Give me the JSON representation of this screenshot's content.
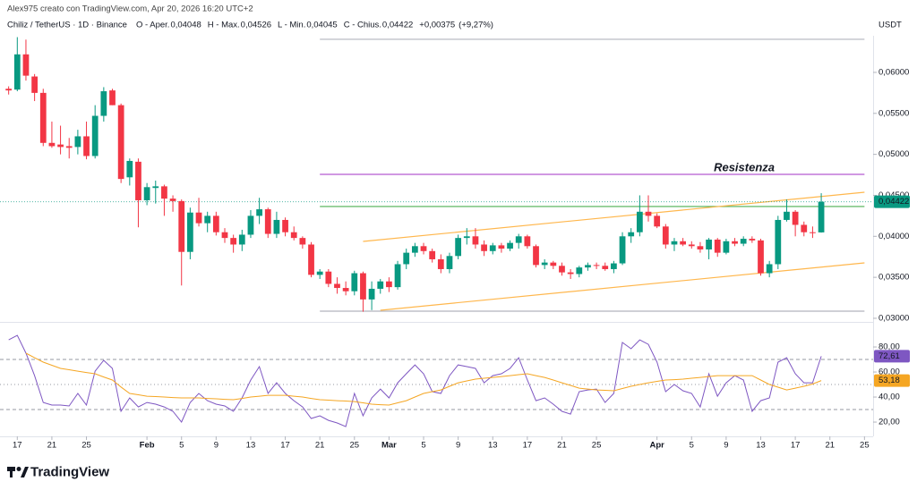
{
  "source": "Alex975 creato con TradingView.com, Apr 20, 2026 16:20 UTC+2",
  "brand": "TradingView",
  "chart_data": [
    {
      "type": "candlestick",
      "title": "Chiliz / TetherUS · 1D · Binance",
      "unit": "USDT",
      "legend_items": [
        {
          "label": "O - Aper.",
          "value": {
            "value": 0.04048,
            "label": "0,04048"
          }
        },
        {
          "label": "H - Max.",
          "value": {
            "value": 0.04526,
            "label": "0,04526"
          }
        },
        {
          "label": "L - Min.",
          "value": {
            "value": 0.04045,
            "label": "0,04045"
          }
        },
        {
          "label": "C - Chius.",
          "value": {
            "value": 0.04422,
            "label": "0,04422"
          }
        }
      ],
      "change": {
        "value": 0.00375,
        "label": "+0,00375"
      },
      "change_percent": {
        "value": 9.27,
        "label": "(+9,27%)"
      },
      "last_price": {
        "value": 0.04422,
        "label": "0,04422"
      },
      "up_color": "#089981",
      "down_color": "#f23645",
      "x": [
        "2026-01-16",
        "2026-01-17",
        "2026-01-18",
        "2026-01-19",
        "2026-01-20",
        "2026-01-21",
        "2026-01-22",
        "2026-01-23",
        "2026-01-24",
        "2026-01-25",
        "2026-01-26",
        "2026-01-27",
        "2026-01-28",
        "2026-01-29",
        "2026-01-30",
        "2026-01-31",
        "2026-02-01",
        "2026-02-02",
        "2026-02-03",
        "2026-02-04",
        "2026-02-05",
        "2026-02-06",
        "2026-02-07",
        "2026-02-08",
        "2026-02-09",
        "2026-02-10",
        "2026-02-11",
        "2026-02-12",
        "2026-02-13",
        "2026-02-14",
        "2026-02-15",
        "2026-02-16",
        "2026-02-17",
        "2026-02-18",
        "2026-02-19",
        "2026-02-20",
        "2026-02-21",
        "2026-02-22",
        "2026-02-23",
        "2026-02-24",
        "2026-02-25",
        "2026-02-26",
        "2026-02-27",
        "2026-02-28",
        "2026-03-01",
        "2026-03-02",
        "2026-03-03",
        "2026-03-04",
        "2026-03-05",
        "2026-03-06",
        "2026-03-07",
        "2026-03-08",
        "2026-03-09",
        "2026-03-10",
        "2026-03-11",
        "2026-03-12",
        "2026-03-13",
        "2026-03-14",
        "2026-03-15",
        "2026-03-16",
        "2026-03-17",
        "2026-03-18",
        "2026-03-19",
        "2026-03-20",
        "2026-03-21",
        "2026-03-22",
        "2026-03-23",
        "2026-03-24",
        "2026-03-25",
        "2026-03-26",
        "2026-03-27",
        "2026-03-28",
        "2026-03-29",
        "2026-03-30",
        "2026-03-31",
        "2026-04-01",
        "2026-04-02",
        "2026-04-03",
        "2026-04-04",
        "2026-04-05",
        "2026-04-06",
        "2026-04-07",
        "2026-04-08",
        "2026-04-09",
        "2026-04-10",
        "2026-04-11",
        "2026-04-12",
        "2026-04-13",
        "2026-04-14",
        "2026-04-15",
        "2026-04-16",
        "2026-04-17",
        "2026-04-18",
        "2026-04-19",
        "2026-04-20"
      ],
      "open": [
        0.058,
        0.0579,
        0.0622,
        0.0595,
        0.0575,
        0.0514,
        0.0512,
        0.051,
        0.0509,
        0.0522,
        0.0498,
        0.0547,
        0.0578,
        0.056,
        0.0472,
        0.0491,
        0.0444,
        0.0459,
        0.0461,
        0.0446,
        0.0443,
        0.0381,
        0.0429,
        0.0416,
        0.0425,
        0.0405,
        0.0398,
        0.039,
        0.0402,
        0.0425,
        0.0433,
        0.0403,
        0.042,
        0.0405,
        0.0398,
        0.039,
        0.0353,
        0.0357,
        0.0342,
        0.0337,
        0.0333,
        0.0355,
        0.0323,
        0.0336,
        0.0345,
        0.0338,
        0.0366,
        0.038,
        0.0388,
        0.0382,
        0.0372,
        0.036,
        0.0376,
        0.0398,
        0.04,
        0.039,
        0.0382,
        0.0389,
        0.0385,
        0.0392,
        0.04,
        0.0388,
        0.0365,
        0.0368,
        0.0364,
        0.0356,
        0.0354,
        0.0362,
        0.0365,
        0.0364,
        0.036,
        0.0367,
        0.04,
        0.0405,
        0.043,
        0.0425,
        0.0412,
        0.039,
        0.0394,
        0.039,
        0.0388,
        0.0384,
        0.0396,
        0.038,
        0.0394,
        0.0391,
        0.0397,
        0.0395,
        0.0355,
        0.0366,
        0.042,
        0.043,
        0.0414,
        0.0405,
        0.04048
      ],
      "high": [
        0.0583,
        0.0643,
        0.064,
        0.0598,
        0.058,
        0.054,
        0.0535,
        0.052,
        0.053,
        0.054,
        0.056,
        0.0582,
        0.058,
        0.0562,
        0.0495,
        0.0495,
        0.0465,
        0.0468,
        0.0463,
        0.045,
        0.0445,
        0.0435,
        0.0447,
        0.043,
        0.043,
        0.041,
        0.0402,
        0.0408,
        0.0432,
        0.0447,
        0.0435,
        0.043,
        0.0423,
        0.0412,
        0.04,
        0.0393,
        0.036,
        0.036,
        0.035,
        0.0345,
        0.0358,
        0.0357,
        0.0345,
        0.0348,
        0.035,
        0.037,
        0.0385,
        0.0392,
        0.0392,
        0.0385,
        0.0378,
        0.038,
        0.0402,
        0.041,
        0.041,
        0.0395,
        0.0392,
        0.0392,
        0.0395,
        0.0403,
        0.0402,
        0.039,
        0.0372,
        0.037,
        0.0368,
        0.036,
        0.0364,
        0.0368,
        0.0368,
        0.0368,
        0.037,
        0.0405,
        0.041,
        0.045,
        0.045,
        0.0428,
        0.0415,
        0.0398,
        0.0398,
        0.0394,
        0.0393,
        0.0398,
        0.0398,
        0.0397,
        0.0398,
        0.04,
        0.04,
        0.0397,
        0.037,
        0.0425,
        0.0445,
        0.0432,
        0.0418,
        0.0412,
        0.04526
      ],
      "low": [
        0.0573,
        0.0577,
        0.059,
        0.0565,
        0.051,
        0.0508,
        0.05,
        0.0495,
        0.05,
        0.0494,
        0.0495,
        0.054,
        0.056,
        0.0465,
        0.0462,
        0.0411,
        0.0438,
        0.044,
        0.0425,
        0.043,
        0.034,
        0.0372,
        0.0412,
        0.0405,
        0.0401,
        0.0392,
        0.038,
        0.0382,
        0.0398,
        0.0415,
        0.0398,
        0.0398,
        0.04,
        0.0395,
        0.0385,
        0.035,
        0.0348,
        0.0338,
        0.033,
        0.0328,
        0.0328,
        0.0308,
        0.031,
        0.033,
        0.0332,
        0.0335,
        0.036,
        0.0375,
        0.0378,
        0.0368,
        0.0355,
        0.0355,
        0.0372,
        0.039,
        0.0385,
        0.0376,
        0.0378,
        0.038,
        0.0382,
        0.0385,
        0.0385,
        0.0362,
        0.036,
        0.036,
        0.0352,
        0.0348,
        0.035,
        0.0358,
        0.036,
        0.0358,
        0.0355,
        0.0365,
        0.0392,
        0.04,
        0.0418,
        0.041,
        0.0385,
        0.0382,
        0.0388,
        0.0385,
        0.038,
        0.0372,
        0.0375,
        0.0378,
        0.0388,
        0.0388,
        0.0392,
        0.0352,
        0.035,
        0.036,
        0.0418,
        0.04,
        0.04,
        0.0398,
        0.04045
      ],
      "close": [
        0.0578,
        0.0622,
        0.0596,
        0.0575,
        0.0514,
        0.051,
        0.0509,
        0.0508,
        0.0522,
        0.0498,
        0.0547,
        0.0577,
        0.056,
        0.047,
        0.0492,
        0.0444,
        0.046,
        0.0461,
        0.0446,
        0.0443,
        0.0381,
        0.0429,
        0.0416,
        0.0425,
        0.0405,
        0.0398,
        0.039,
        0.0402,
        0.0425,
        0.0433,
        0.0403,
        0.042,
        0.0405,
        0.0398,
        0.039,
        0.0353,
        0.0357,
        0.0342,
        0.0337,
        0.0333,
        0.0355,
        0.0323,
        0.0336,
        0.0345,
        0.0338,
        0.0366,
        0.038,
        0.0388,
        0.0382,
        0.0372,
        0.036,
        0.0376,
        0.0398,
        0.04,
        0.039,
        0.0382,
        0.0389,
        0.0385,
        0.0392,
        0.04,
        0.0388,
        0.0365,
        0.0368,
        0.0364,
        0.0356,
        0.0354,
        0.0362,
        0.0365,
        0.0364,
        0.036,
        0.0367,
        0.04,
        0.0405,
        0.043,
        0.0425,
        0.0412,
        0.039,
        0.0394,
        0.039,
        0.0388,
        0.0384,
        0.0396,
        0.038,
        0.0394,
        0.0391,
        0.0397,
        0.0395,
        0.0355,
        0.0366,
        0.042,
        0.043,
        0.0414,
        0.0405,
        0.0404,
        0.04422
      ],
      "drawings": [
        {
          "label": "Resistenza",
          "color": "#b35ad1",
          "x": [
            "2026-02-21",
            "2026-04-25"
          ],
          "y": [
            0.04756,
            0.04756
          ]
        },
        {
          "color": "#4caf50",
          "x": [
            "2026-02-21",
            "2026-04-25"
          ],
          "y": [
            0.04364,
            0.04364
          ]
        },
        {
          "color": "#b2b5be",
          "x": [
            "2026-02-21",
            "2026-04-25"
          ],
          "y": [
            0.06404,
            0.06404
          ]
        },
        {
          "color": "#b2b5be",
          "x": [
            "2026-02-21",
            "2026-04-25"
          ],
          "y": [
            0.03087,
            0.03087
          ]
        },
        {
          "color": "#ffb74d",
          "x": [
            "2026-02-26",
            "2026-04-25"
          ],
          "y": [
            0.03938,
            0.04538
          ]
        },
        {
          "color": "#ffb74d",
          "x": [
            "2026-02-28",
            "2026-04-25"
          ],
          "y": [
            0.03098,
            0.03676
          ]
        }
      ],
      "xlim": [
        "2026-01-15",
        "2026-04-26"
      ],
      "xticks": [
        {
          "value": "2026-01-17",
          "label": "17"
        },
        {
          "value": "2026-01-21",
          "label": "21"
        },
        {
          "value": "2026-01-25",
          "label": "25"
        },
        {
          "value": "2026-02-01",
          "label": "Feb"
        },
        {
          "value": "2026-02-05",
          "label": "5"
        },
        {
          "value": "2026-02-09",
          "label": "9"
        },
        {
          "value": "2026-02-13",
          "label": "13"
        },
        {
          "value": "2026-02-17",
          "label": "17"
        },
        {
          "value": "2026-02-21",
          "label": "21"
        },
        {
          "value": "2026-02-25",
          "label": "25"
        },
        {
          "value": "2026-03-01",
          "label": "Mar"
        },
        {
          "value": "2026-03-05",
          "label": "5"
        },
        {
          "value": "2026-03-09",
          "label": "9"
        },
        {
          "value": "2026-03-13",
          "label": "13"
        },
        {
          "value": "2026-03-17",
          "label": "17"
        },
        {
          "value": "2026-03-21",
          "label": "21"
        },
        {
          "value": "2026-03-25",
          "label": "25"
        },
        {
          "value": "2026-04-01",
          "label": "Apr"
        },
        {
          "value": "2026-04-05",
          "label": "5"
        },
        {
          "value": "2026-04-09",
          "label": "9"
        },
        {
          "value": "2026-04-13",
          "label": "13"
        },
        {
          "value": "2026-04-17",
          "label": "17"
        },
        {
          "value": "2026-04-21",
          "label": "21"
        },
        {
          "value": "2026-04-25",
          "label": "25"
        }
      ],
      "ylim": [
        0.02956,
        0.06425
      ],
      "yticks": [
        {
          "value": 0.03,
          "label": "0,03000"
        },
        {
          "value": 0.035,
          "label": "0,03500"
        },
        {
          "value": 0.04,
          "label": "0,04000"
        },
        {
          "value": 0.045,
          "label": "0,04500"
        },
        {
          "value": 0.05,
          "label": "0,05000"
        },
        {
          "value": 0.055,
          "label": "0,05500"
        },
        {
          "value": 0.06,
          "label": "0,06000"
        }
      ]
    },
    {
      "type": "line",
      "series": [
        {
          "color": "#7e57c2",
          "last_label": {
            "value": 72.61,
            "label": "72,61"
          },
          "values": [
            85.7,
            89.3,
            75,
            57.1,
            35.7,
            33.6,
            33.6,
            32.9,
            42.9,
            33.6,
            60.7,
            69.3,
            62.9,
            28.6,
            39.3,
            32.1,
            35.7,
            34.3,
            32.1,
            28.6,
            20,
            35.7,
            42.9,
            37.1,
            34.3,
            32.9,
            28.6,
            39.3,
            53.6,
            64.3,
            42.9,
            51.4,
            42.9,
            37.1,
            32.1,
            22.9,
            25,
            21.4,
            19.3,
            16.4,
            42.9,
            25,
            39.3,
            46.4,
            39.3,
            51.4,
            58.6,
            65.7,
            58.6,
            44.3,
            42.9,
            57.1,
            65.7,
            64.3,
            62.9,
            51.4,
            57.1,
            58.6,
            62.9,
            71.4,
            53.6,
            37.1,
            39.3,
            34.3,
            28.6,
            26.4,
            44.3,
            45.7,
            46.4,
            35.7,
            42.9,
            83.6,
            78.6,
            85.7,
            82.1,
            67.9,
            44.3,
            50,
            45,
            42.9,
            32.1,
            58.6,
            40.7,
            51.4,
            57.1,
            53.6,
            28.6,
            37.1,
            39.3,
            67.9,
            71.4,
            58.6,
            51.4,
            51.4,
            72.61
          ]
        },
        {
          "color": "#f5a623",
          "last_label": {
            "value": 53.18,
            "label": "53,18"
          },
          "values": [
            null,
            null,
            75,
            71.4,
            67.9,
            65.4,
            62.9,
            61.8,
            60.7,
            59.6,
            58.6,
            56,
            53.6,
            48,
            42.9,
            41.8,
            40.7,
            40.4,
            40,
            39.6,
            39.3,
            39.3,
            39.3,
            38.9,
            38.6,
            38.2,
            37.9,
            38.9,
            40,
            40.7,
            41.4,
            41.4,
            41.4,
            40.7,
            40,
            38.9,
            37.9,
            37.5,
            37.1,
            36.8,
            36.4,
            35.4,
            34.3,
            33.9,
            33.6,
            35.4,
            37.1,
            40,
            42.9,
            44.3,
            45.7,
            48.6,
            51.4,
            52.9,
            54.3,
            55,
            55.7,
            56.4,
            57.1,
            57.9,
            58.6,
            57.1,
            55.7,
            53.6,
            51.4,
            49.3,
            47.1,
            46.4,
            45.7,
            45.4,
            45,
            46.8,
            48.6,
            50,
            51.4,
            52.5,
            53.6,
            53.9,
            54.3,
            55,
            55.7,
            56.4,
            57.1,
            57.1,
            57.1,
            57.1,
            57.1,
            53.6,
            50,
            47.9,
            45.7,
            47.1,
            48.6,
            50.4,
            53.18
          ]
        }
      ],
      "levels": [
        70,
        50,
        30
      ],
      "ylim": [
        8.6,
        98.6
      ],
      "yticks": [
        {
          "value": 20,
          "label": "20,00"
        },
        {
          "value": 40,
          "label": "40,00"
        },
        {
          "value": 60,
          "label": "60,00"
        },
        {
          "value": 80,
          "label": "80,00"
        }
      ]
    }
  ]
}
